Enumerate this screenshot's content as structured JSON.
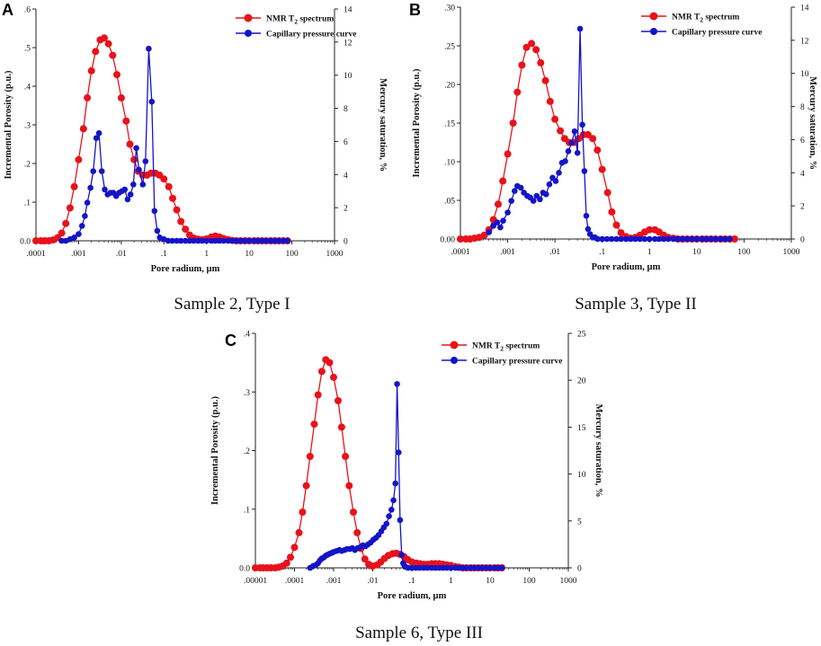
{
  "figure": {
    "colors": {
      "nmr": "#e8121b",
      "capillary": "#1414c8",
      "axis": "#222222"
    }
  },
  "chart_data": [
    {
      "panel": "A",
      "type": "line",
      "caption": "Sample 2, Type I",
      "xlabel": "Pore radium, µm",
      "ylabel": "Incremental Porosity (p.u.)",
      "y2label": "Mercury saturation, %",
      "xscale": "log",
      "xlim": [
        0.0001,
        1000
      ],
      "xticks": [
        0.0001,
        0.001,
        0.01,
        0.1,
        1,
        10,
        100,
        1000
      ],
      "xtick_labels": [
        ".0001",
        ".001",
        ".01",
        ".1",
        "1",
        "10",
        "100",
        "1000"
      ],
      "ylim": [
        0,
        0.6
      ],
      "yticks": [
        0,
        0.1,
        0.2,
        0.3,
        0.4,
        0.5,
        0.6
      ],
      "ytick_labels": [
        "0.0",
        ".1",
        ".2",
        ".3",
        ".4",
        ".5",
        ".6"
      ],
      "y2lim": [
        0,
        14
      ],
      "y2ticks": [
        0,
        2,
        4,
        6,
        8,
        10,
        12,
        14
      ],
      "y2tick_labels": [
        "0",
        "2",
        "4",
        "6",
        "8",
        "10",
        "12",
        "14"
      ],
      "legend": {
        "position": "top-right",
        "nmr_label": "NMR T",
        "nmr_sub": "2",
        "nmr_suffix": " spectrum",
        "cap_label": "Capillary pressure curve"
      },
      "series": [
        {
          "name": "NMR T2 spectrum",
          "axis": "left",
          "color_key": "nmr",
          "x": [
            0.0001,
            0.00013,
            0.00016,
            0.0002,
            0.00025,
            0.00032,
            0.0004,
            0.0005,
            0.00063,
            0.00079,
            0.001,
            0.0013,
            0.0016,
            0.002,
            0.0025,
            0.0032,
            0.004,
            0.005,
            0.0063,
            0.0079,
            0.01,
            0.013,
            0.016,
            0.02,
            0.025,
            0.032,
            0.04,
            0.05,
            0.063,
            0.079,
            0.1,
            0.13,
            0.16,
            0.2,
            0.25,
            0.32,
            0.4,
            0.5,
            0.63,
            0.79,
            1,
            1.3,
            1.6,
            2,
            2.5,
            3.2,
            4,
            5,
            6.3,
            7.9,
            10,
            13,
            16,
            20,
            25,
            32,
            40,
            50,
            63,
            79
          ],
          "values": [
            0,
            0,
            0,
            0,
            0.002,
            0.008,
            0.02,
            0.045,
            0.085,
            0.14,
            0.21,
            0.29,
            0.37,
            0.44,
            0.49,
            0.52,
            0.525,
            0.51,
            0.48,
            0.43,
            0.37,
            0.31,
            0.25,
            0.21,
            0.18,
            0.17,
            0.17,
            0.175,
            0.175,
            0.17,
            0.16,
            0.14,
            0.11,
            0.08,
            0.05,
            0.03,
            0.015,
            0.007,
            0.004,
            0.003,
            0.005,
            0.01,
            0.012,
            0.01,
            0.006,
            0.003,
            0.001,
            0,
            0,
            0,
            0,
            0,
            0,
            0,
            0,
            0,
            0,
            0,
            0,
            0
          ]
        },
        {
          "name": "Capillary pressure curve",
          "axis": "right",
          "color_key": "capillary",
          "x": [
            0.0004,
            0.0005,
            0.00063,
            0.00079,
            0.001,
            0.0012,
            0.0014,
            0.0016,
            0.0019,
            0.0022,
            0.0026,
            0.003,
            0.0035,
            0.0041,
            0.0048,
            0.0056,
            0.0065,
            0.0076,
            0.0089,
            0.0104,
            0.0121,
            0.0141,
            0.0165,
            0.0192,
            0.0225,
            0.026,
            0.032,
            0.037,
            0.044,
            0.052,
            0.06,
            0.07,
            0.08,
            0.1,
            0.126,
            0.158,
            0.2,
            0.25,
            0.32,
            0.4,
            0.5,
            0.63,
            0.79,
            1,
            1.3,
            1.6,
            2,
            2.5,
            3.2,
            4,
            5,
            6.3,
            8,
            10,
            13,
            16,
            20,
            25,
            32,
            40,
            50,
            63,
            79
          ],
          "values": [
            0,
            0,
            0.1,
            0.2,
            0.4,
            0.9,
            1.5,
            2.3,
            3.2,
            4.2,
            6.2,
            6.5,
            4.2,
            3.1,
            2.8,
            2.9,
            2.9,
            2.7,
            2.9,
            3.0,
            3.1,
            2.5,
            2.8,
            3.4,
            5.6,
            4.3,
            3.4,
            4.8,
            11.6,
            8.4,
            1.8,
            0.6,
            0.2,
            0.1,
            0,
            0,
            0,
            0,
            0,
            0,
            0,
            0,
            0,
            0,
            0,
            0,
            0,
            0,
            0,
            0,
            0,
            0,
            0,
            0,
            0,
            0,
            0,
            0,
            0,
            0,
            0,
            0,
            0
          ]
        }
      ]
    },
    {
      "panel": "B",
      "type": "line",
      "caption": "Sample 3, Type II",
      "xlabel": "Pore radium, µm",
      "ylabel": "Incremental Porosity (p.u.)",
      "y2label": "Mercury saturation, %",
      "xscale": "log",
      "xlim": [
        0.0001,
        1000
      ],
      "xticks": [
        0.0001,
        0.001,
        0.01,
        0.1,
        1,
        10,
        100,
        1000
      ],
      "xtick_labels": [
        ".0001",
        ".001",
        ".01",
        ".1",
        "1",
        "10",
        "100",
        "1000"
      ],
      "ylim": [
        0,
        0.3
      ],
      "yticks": [
        0,
        0.05,
        0.1,
        0.15,
        0.2,
        0.25,
        0.3
      ],
      "ytick_labels": [
        "0.00",
        ".05",
        ".10",
        ".15",
        ".20",
        ".25",
        ".30"
      ],
      "y2lim": [
        0,
        14
      ],
      "y2ticks": [
        0,
        2,
        4,
        6,
        8,
        10,
        12,
        14
      ],
      "y2tick_labels": [
        "0",
        "2",
        "4",
        "6",
        "8",
        "10",
        "12",
        "14"
      ],
      "legend": {
        "position": "top-right",
        "nmr_label": "NMR T",
        "nmr_sub": "2",
        "nmr_suffix": " spectrum",
        "cap_label": "Capillary pressure curve"
      },
      "series": [
        {
          "name": "NMR T2 spectrum",
          "axis": "left",
          "color_key": "nmr",
          "x": [
            0.0001,
            0.00013,
            0.00016,
            0.0002,
            0.00025,
            0.00032,
            0.0004,
            0.0005,
            0.00063,
            0.00079,
            0.001,
            0.0013,
            0.0016,
            0.002,
            0.0025,
            0.0032,
            0.004,
            0.005,
            0.0063,
            0.0079,
            0.01,
            0.013,
            0.016,
            0.02,
            0.025,
            0.032,
            0.04,
            0.05,
            0.063,
            0.079,
            0.1,
            0.13,
            0.16,
            0.2,
            0.25,
            0.32,
            0.4,
            0.5,
            0.63,
            0.79,
            1,
            1.3,
            1.6,
            2,
            2.5,
            3.2,
            4,
            5,
            6.3,
            7.9,
            10,
            13,
            16,
            20,
            25,
            32,
            40,
            50,
            63
          ],
          "values": [
            0,
            0,
            0,
            0.001,
            0.002,
            0.005,
            0.012,
            0.025,
            0.045,
            0.075,
            0.11,
            0.15,
            0.19,
            0.225,
            0.248,
            0.253,
            0.245,
            0.228,
            0.205,
            0.178,
            0.155,
            0.14,
            0.13,
            0.125,
            0.125,
            0.13,
            0.135,
            0.135,
            0.13,
            0.115,
            0.09,
            0.06,
            0.035,
            0.018,
            0.008,
            0.003,
            0.001,
            0.002,
            0.005,
            0.009,
            0.012,
            0.012,
            0.009,
            0.005,
            0.002,
            0.001,
            0,
            0,
            0,
            0,
            0,
            0,
            0,
            0,
            0,
            0,
            0,
            0,
            0
          ]
        },
        {
          "name": "Capillary pressure curve",
          "axis": "right",
          "color_key": "capillary",
          "x": [
            0.0004,
            0.0005,
            0.0006,
            0.0007,
            0.0008,
            0.001,
            0.0012,
            0.0014,
            0.0016,
            0.0019,
            0.0022,
            0.0026,
            0.003,
            0.0035,
            0.0041,
            0.0048,
            0.0056,
            0.0065,
            0.0076,
            0.0089,
            0.0104,
            0.0121,
            0.0141,
            0.0165,
            0.0192,
            0.0225,
            0.026,
            0.03,
            0.034,
            0.038,
            0.042,
            0.046,
            0.05,
            0.055,
            0.063,
            0.07,
            0.08,
            0.1,
            0.126,
            0.158,
            0.2,
            0.25,
            0.32,
            0.4,
            0.5,
            0.63,
            0.79,
            1,
            1.3,
            1.6,
            2,
            2.5,
            3.2,
            4,
            5,
            6.3,
            8,
            10,
            13,
            16,
            20,
            25,
            32,
            40,
            50
          ],
          "values": [
            0.4,
            0.8,
            1.0,
            0.7,
            1.1,
            1.6,
            2.3,
            2.9,
            3.2,
            3.1,
            2.8,
            2.6,
            2.5,
            2.3,
            2.6,
            2.4,
            2.8,
            2.7,
            3.3,
            3.7,
            3.5,
            4.0,
            4.6,
            4.7,
            5.3,
            5.8,
            6.5,
            5.2,
            12.7,
            6.9,
            4.1,
            1.4,
            0.6,
            0.3,
            0.1,
            0.1,
            0,
            0,
            0,
            0,
            0,
            0,
            0,
            0,
            0,
            0,
            0,
            0,
            0,
            0,
            0,
            0,
            0,
            0,
            0,
            0,
            0,
            0,
            0,
            0,
            0,
            0,
            0,
            0,
            0
          ]
        }
      ]
    },
    {
      "panel": "C",
      "type": "line",
      "caption": "Sample 6, Type III",
      "xlabel": "Pore radium, µm",
      "ylabel": "Incremental Porosity (p.u.)",
      "y2label": "Mercury saturation, %",
      "xscale": "log",
      "xlim": [
        1e-05,
        1000
      ],
      "xticks": [
        1e-05,
        0.0001,
        0.001,
        0.01,
        0.1,
        1,
        10,
        100,
        1000
      ],
      "xtick_labels": [
        ".00001",
        ".0001",
        ".001",
        ".01",
        ".1",
        "1",
        "10",
        "100",
        "1000"
      ],
      "ylim": [
        0,
        0.4
      ],
      "yticks": [
        0,
        0.1,
        0.2,
        0.3,
        0.4
      ],
      "ytick_labels": [
        "0.0",
        ".1",
        ".2",
        ".3",
        ".4"
      ],
      "y2lim": [
        0,
        25
      ],
      "y2ticks": [
        0,
        5,
        10,
        15,
        20,
        25
      ],
      "y2tick_labels": [
        "0",
        "5",
        "10",
        "15",
        "20",
        "25"
      ],
      "legend": {
        "position": "top-right",
        "nmr_label": "NMR T",
        "nmr_sub": "2",
        "nmr_suffix": " spectrum",
        "cap_label": "Capillary pressure curve"
      },
      "series": [
        {
          "name": "NMR T2 spectrum",
          "axis": "left",
          "color_key": "nmr",
          "x": [
            1e-05,
            1.3e-05,
            1.6e-05,
            2e-05,
            2.5e-05,
            3.2e-05,
            4e-05,
            5e-05,
            6.3e-05,
            7.9e-05,
            0.0001,
            0.00013,
            0.00016,
            0.0002,
            0.00025,
            0.00032,
            0.0004,
            0.0005,
            0.00063,
            0.00079,
            0.001,
            0.0013,
            0.0016,
            0.002,
            0.0025,
            0.0032,
            0.004,
            0.005,
            0.0063,
            0.0079,
            0.01,
            0.013,
            0.016,
            0.02,
            0.025,
            0.032,
            0.04,
            0.05,
            0.063,
            0.079,
            0.1,
            0.13,
            0.16,
            0.2,
            0.25,
            0.32,
            0.4,
            0.5,
            0.63,
            0.79,
            1,
            1.3,
            1.6,
            2,
            2.5,
            3.2,
            4,
            5,
            6.3,
            7.9,
            10,
            13,
            16,
            20
          ],
          "values": [
            0,
            0,
            0,
            0,
            0,
            0,
            0.001,
            0.003,
            0.008,
            0.018,
            0.035,
            0.06,
            0.095,
            0.14,
            0.19,
            0.245,
            0.295,
            0.335,
            0.355,
            0.35,
            0.325,
            0.285,
            0.24,
            0.19,
            0.14,
            0.095,
            0.06,
            0.033,
            0.015,
            0.006,
            0.003,
            0.005,
            0.01,
            0.016,
            0.021,
            0.024,
            0.025,
            0.023,
            0.019,
            0.014,
            0.01,
            0.008,
            0.007,
            0.006,
            0.006,
            0.007,
            0.007,
            0.007,
            0.006,
            0.005,
            0.004,
            0.002,
            0.001,
            0,
            0,
            0,
            0,
            0,
            0,
            0,
            0,
            0,
            0,
            0
          ]
        },
        {
          "name": "Capillary pressure curve",
          "axis": "right",
          "color_key": "capillary",
          "x": [
            0.00025,
            0.0003,
            0.00035,
            0.0004,
            0.00045,
            0.0005,
            0.00056,
            0.00063,
            0.0007,
            0.00079,
            0.0009,
            0.001,
            0.0012,
            0.0014,
            0.0016,
            0.0019,
            0.0022,
            0.0026,
            0.003,
            0.0035,
            0.0041,
            0.0048,
            0.0056,
            0.0065,
            0.0076,
            0.0089,
            0.0104,
            0.0121,
            0.0141,
            0.0165,
            0.0192,
            0.0225,
            0.026,
            0.03,
            0.034,
            0.038,
            0.042,
            0.046,
            0.05,
            0.055,
            0.06,
            0.065,
            0.07,
            0.08,
            0.1,
            0.126,
            0.158,
            0.2,
            0.25,
            0.32,
            0.4,
            0.5,
            0.63,
            0.79,
            1,
            1.3,
            1.6,
            2,
            2.5,
            3.2,
            4,
            5,
            6.3,
            8,
            10,
            13,
            16,
            20
          ],
          "values": [
            0,
            0.2,
            0.3,
            0.5,
            0.8,
            1.0,
            1.1,
            1.3,
            1.4,
            1.5,
            1.6,
            1.7,
            1.8,
            1.9,
            1.8,
            1.9,
            2.0,
            2.0,
            2.1,
            1.9,
            2.1,
            2.2,
            2.4,
            2.3,
            2.5,
            2.7,
            3.0,
            3.2,
            3.5,
            3.9,
            4.3,
            4.7,
            5.5,
            6.2,
            7.2,
            9.0,
            19.6,
            12.3,
            5.1,
            1.4,
            0.5,
            0.2,
            0.1,
            0,
            0,
            0,
            0,
            0,
            0,
            0,
            0,
            0,
            0,
            0,
            0,
            0,
            0,
            0,
            0,
            0,
            0,
            0,
            0,
            0,
            0,
            0,
            0,
            0
          ]
        }
      ]
    }
  ]
}
